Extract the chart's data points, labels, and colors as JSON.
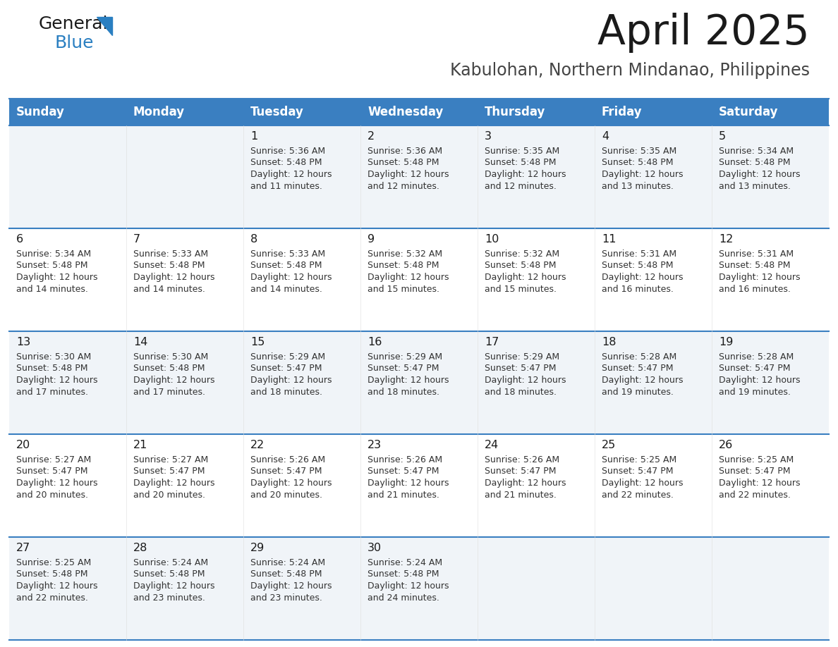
{
  "title": "April 2025",
  "subtitle": "Kabulohan, Northern Mindanao, Philippines",
  "days_of_week": [
    "Sunday",
    "Monday",
    "Tuesday",
    "Wednesday",
    "Thursday",
    "Friday",
    "Saturday"
  ],
  "header_bg": "#3a7fc1",
  "header_text_color": "#ffffff",
  "row_bg_odd": "#f0f4f8",
  "row_bg_even": "#ffffff",
  "cell_border_color": "#3a7fc1",
  "title_color": "#1a1a1a",
  "subtitle_color": "#444444",
  "day_number_color": "#1a1a1a",
  "cell_text_color": "#333333",
  "logo_general_color": "#1a1a1a",
  "logo_blue_color": "#2a7fc1",
  "calendar_data": [
    [
      null,
      null,
      {
        "day": 1,
        "sunrise": "5:36 AM",
        "sunset": "5:48 PM",
        "daylight": "12 hours and 11 minutes."
      },
      {
        "day": 2,
        "sunrise": "5:36 AM",
        "sunset": "5:48 PM",
        "daylight": "12 hours and 12 minutes."
      },
      {
        "day": 3,
        "sunrise": "5:35 AM",
        "sunset": "5:48 PM",
        "daylight": "12 hours and 12 minutes."
      },
      {
        "day": 4,
        "sunrise": "5:35 AM",
        "sunset": "5:48 PM",
        "daylight": "12 hours and 13 minutes."
      },
      {
        "day": 5,
        "sunrise": "5:34 AM",
        "sunset": "5:48 PM",
        "daylight": "12 hours and 13 minutes."
      }
    ],
    [
      {
        "day": 6,
        "sunrise": "5:34 AM",
        "sunset": "5:48 PM",
        "daylight": "12 hours and 14 minutes."
      },
      {
        "day": 7,
        "sunrise": "5:33 AM",
        "sunset": "5:48 PM",
        "daylight": "12 hours and 14 minutes."
      },
      {
        "day": 8,
        "sunrise": "5:33 AM",
        "sunset": "5:48 PM",
        "daylight": "12 hours and 14 minutes."
      },
      {
        "day": 9,
        "sunrise": "5:32 AM",
        "sunset": "5:48 PM",
        "daylight": "12 hours and 15 minutes."
      },
      {
        "day": 10,
        "sunrise": "5:32 AM",
        "sunset": "5:48 PM",
        "daylight": "12 hours and 15 minutes."
      },
      {
        "day": 11,
        "sunrise": "5:31 AM",
        "sunset": "5:48 PM",
        "daylight": "12 hours and 16 minutes."
      },
      {
        "day": 12,
        "sunrise": "5:31 AM",
        "sunset": "5:48 PM",
        "daylight": "12 hours and 16 minutes."
      }
    ],
    [
      {
        "day": 13,
        "sunrise": "5:30 AM",
        "sunset": "5:48 PM",
        "daylight": "12 hours and 17 minutes."
      },
      {
        "day": 14,
        "sunrise": "5:30 AM",
        "sunset": "5:48 PM",
        "daylight": "12 hours and 17 minutes."
      },
      {
        "day": 15,
        "sunrise": "5:29 AM",
        "sunset": "5:47 PM",
        "daylight": "12 hours and 18 minutes."
      },
      {
        "day": 16,
        "sunrise": "5:29 AM",
        "sunset": "5:47 PM",
        "daylight": "12 hours and 18 minutes."
      },
      {
        "day": 17,
        "sunrise": "5:29 AM",
        "sunset": "5:47 PM",
        "daylight": "12 hours and 18 minutes."
      },
      {
        "day": 18,
        "sunrise": "5:28 AM",
        "sunset": "5:47 PM",
        "daylight": "12 hours and 19 minutes."
      },
      {
        "day": 19,
        "sunrise": "5:28 AM",
        "sunset": "5:47 PM",
        "daylight": "12 hours and 19 minutes."
      }
    ],
    [
      {
        "day": 20,
        "sunrise": "5:27 AM",
        "sunset": "5:47 PM",
        "daylight": "12 hours and 20 minutes."
      },
      {
        "day": 21,
        "sunrise": "5:27 AM",
        "sunset": "5:47 PM",
        "daylight": "12 hours and 20 minutes."
      },
      {
        "day": 22,
        "sunrise": "5:26 AM",
        "sunset": "5:47 PM",
        "daylight": "12 hours and 20 minutes."
      },
      {
        "day": 23,
        "sunrise": "5:26 AM",
        "sunset": "5:47 PM",
        "daylight": "12 hours and 21 minutes."
      },
      {
        "day": 24,
        "sunrise": "5:26 AM",
        "sunset": "5:47 PM",
        "daylight": "12 hours and 21 minutes."
      },
      {
        "day": 25,
        "sunrise": "5:25 AM",
        "sunset": "5:47 PM",
        "daylight": "12 hours and 22 minutes."
      },
      {
        "day": 26,
        "sunrise": "5:25 AM",
        "sunset": "5:47 PM",
        "daylight": "12 hours and 22 minutes."
      }
    ],
    [
      {
        "day": 27,
        "sunrise": "5:25 AM",
        "sunset": "5:48 PM",
        "daylight": "12 hours and 22 minutes."
      },
      {
        "day": 28,
        "sunrise": "5:24 AM",
        "sunset": "5:48 PM",
        "daylight": "12 hours and 23 minutes."
      },
      {
        "day": 29,
        "sunrise": "5:24 AM",
        "sunset": "5:48 PM",
        "daylight": "12 hours and 23 minutes."
      },
      {
        "day": 30,
        "sunrise": "5:24 AM",
        "sunset": "5:48 PM",
        "daylight": "12 hours and 24 minutes."
      },
      null,
      null,
      null
    ]
  ]
}
